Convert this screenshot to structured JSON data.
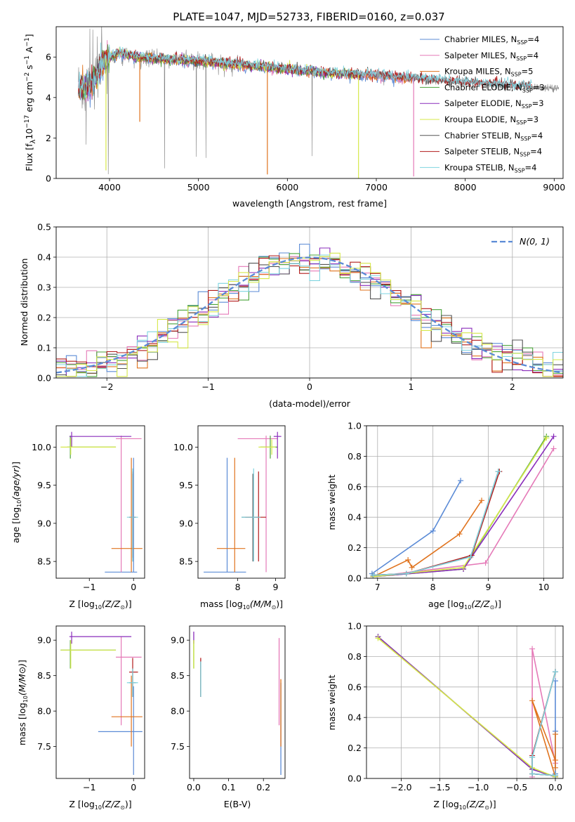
{
  "figure": {
    "title": "PLATE=1047, MJD=52733, FIBERID=0160, z=0.037"
  },
  "colors": {
    "Chabrier MILES": "#5b8bd6",
    "Salpeter MILES": "#e57ab8",
    "Kroupa MILES": "#e0731e",
    "Chabrier ELODIE": "#4aa33b",
    "Salpeter ELODIE": "#8a2dbb",
    "Kroupa ELODIE": "#d6e84a",
    "Chabrier STELIB": "#555555",
    "Salpeter STELIB": "#b31b1b",
    "Kroupa STELIB": "#7fd4e0",
    "data": "#808080",
    "gauss": "#5b8bd6"
  },
  "chart_data": [
    {
      "id": "spectrum",
      "type": "line",
      "xlabel": "wavelength [Angstrom, rest frame]",
      "ylabel": "Flux [f",
      "xlim": [
        3400,
        9100
      ],
      "ylim": [
        0,
        7.5
      ],
      "xticks": [
        4000,
        5000,
        6000,
        7000,
        8000,
        9000
      ],
      "yticks": [
        0,
        2,
        4,
        6
      ],
      "legend_position": "top-right",
      "legend": [
        {
          "model": "Chabrier MILES",
          "label": "Chabrier MILES, N",
          "n": 4
        },
        {
          "model": "Salpeter MILES",
          "label": "Salpeter MILES, N",
          "n": 4
        },
        {
          "model": "Kroupa MILES",
          "label": "Kroupa MILES, N",
          "n": 5
        },
        {
          "model": "Chabrier ELODIE",
          "label": "Chabrier ELODIE, N",
          "n": 3
        },
        {
          "model": "Salpeter ELODIE",
          "label": "Salpeter ELODIE, N",
          "n": 3
        },
        {
          "model": "Kroupa ELODIE",
          "label": "Kroupa ELODIE, N",
          "n": 3
        },
        {
          "model": "Chabrier STELIB",
          "label": "Chabrier STELIB, N",
          "n": 4
        },
        {
          "model": "Salpeter STELIB",
          "label": "Salpeter STELIB, N",
          "n": 4
        },
        {
          "model": "Kroupa STELIB",
          "label": "Kroupa STELIB, N",
          "n": 4
        }
      ],
      "continuum": [
        [
          3650,
          4.3
        ],
        [
          3800,
          4.6
        ],
        [
          3950,
          5.9
        ],
        [
          4100,
          6.2
        ],
        [
          4300,
          6.0
        ],
        [
          4600,
          5.9
        ],
        [
          5000,
          5.8
        ],
        [
          5500,
          5.6
        ],
        [
          6000,
          5.4
        ],
        [
          6500,
          5.2
        ],
        [
          7000,
          5.1
        ],
        [
          7400,
          4.95
        ],
        [
          7800,
          4.8
        ],
        [
          8300,
          4.65
        ],
        [
          8800,
          4.5
        ],
        [
          9050,
          4.45
        ]
      ],
      "model_cutoffs": {
        "MILES": 7420,
        "ELODIE": 6800,
        "STELIB": 8750
      }
    },
    {
      "id": "residuals",
      "type": "line",
      "xlabel": "(data-model)/error",
      "ylabel": "Normed distribution",
      "xlim": [
        -2.5,
        2.5
      ],
      "ylim": [
        0,
        0.5
      ],
      "xticks": [
        -2,
        -1,
        0,
        1,
        2
      ],
      "yticks": [
        0.0,
        0.1,
        0.2,
        0.3,
        0.4,
        0.5
      ],
      "legend_label": "N(0, 1)",
      "legend_position": "top-right",
      "bin_width": 0.1
    },
    {
      "id": "age-vs-Z",
      "type": "scatter",
      "xlabel": "Z [log",
      "ylabel": "age  [log",
      "xlim": [
        -1.75,
        0.25
      ],
      "ylim": [
        8.28,
        10.28
      ],
      "xticks": [
        -1,
        0
      ],
      "yticks": [
        8.5,
        9.0,
        9.5,
        10.0
      ]
    },
    {
      "id": "age-vs-mass",
      "type": "scatter",
      "xlabel": "mass [log",
      "ylabel": "",
      "xlim": [
        6.95,
        9.25
      ],
      "ylim": [
        8.28,
        10.28
      ],
      "xticks": [
        8,
        9
      ],
      "yticks": [
        8.5,
        9.0,
        9.5,
        10.0
      ]
    },
    {
      "id": "massweight-vs-age",
      "type": "line",
      "xlabel": "age  [log",
      "ylabel": "mass weight",
      "xlim": [
        6.8,
        10.35
      ],
      "ylim": [
        0,
        1.0
      ],
      "xticks": [
        7,
        8,
        9,
        10
      ],
      "yticks": [
        0.0,
        0.2,
        0.4,
        0.6,
        0.8,
        1.0
      ]
    },
    {
      "id": "mass-vs-Z",
      "type": "scatter",
      "xlabel": "Z [log",
      "ylabel": "mass [log",
      "xlim": [
        -1.75,
        0.25
      ],
      "ylim": [
        7.05,
        9.2
      ],
      "xticks": [
        -1,
        0
      ],
      "yticks": [
        7.5,
        8.0,
        8.5,
        9.0
      ]
    },
    {
      "id": "mass-vs-ebv",
      "type": "scatter",
      "xlabel": "E(B-V)",
      "ylabel": "",
      "xlim": [
        -0.012,
        0.262
      ],
      "ylim": [
        7.05,
        9.2
      ],
      "xticks": [
        0.0,
        0.1,
        0.2
      ],
      "yticks": [
        7.5,
        8.0,
        8.5,
        9.0
      ]
    },
    {
      "id": "massweight-vs-Z",
      "type": "line",
      "xlabel": "Z [log",
      "ylabel": "mass weight",
      "xlim": [
        -2.45,
        0.1
      ],
      "ylim": [
        0,
        1.0
      ],
      "xticks": [
        -2.0,
        -1.5,
        -1.0,
        -0.5,
        0.0
      ],
      "yticks": [
        0.0,
        0.2,
        0.4,
        0.6,
        0.8,
        1.0
      ]
    }
  ],
  "models": [
    {
      "name": "Chabrier MILES",
      "age": [
        6.9,
        8.0,
        8.5
      ],
      "mw": [
        0.03,
        0.31,
        0.64
      ],
      "Z": [
        0.0,
        0.0,
        0.0
      ],
      "ageZ": {
        "Z": 0.0,
        "Zlo": -0.65,
        "Zhi": 0.08,
        "age": 8.36,
        "elo": 8.36,
        "ehi": 9.86
      },
      "agemass": {
        "m": 7.72,
        "mlo": 7.1,
        "mhi": 8.22,
        "age": 8.36,
        "elo": 8.36,
        "ehi": 9.86
      },
      "massZ": {
        "Z": 0.0,
        "Zlo": -0.8,
        "Zhi": 0.2,
        "m": 7.71,
        "elo": 7.1,
        "ehi": 8.35
      },
      "ebv": {
        "e": 0.25,
        "lo": 7.1,
        "hi": 8.4
      },
      "zpath": [
        [
          0.0,
          0.03
        ],
        [
          0.0,
          0.31
        ],
        [
          0.0,
          0.64
        ]
      ]
    },
    {
      "name": "Salpeter MILES",
      "age": [
        6.92,
        8.95,
        10.18
      ],
      "mw": [
        0.01,
        0.1,
        0.85
      ],
      "Z": [
        -0.3,
        -0.3,
        0.0
      ],
      "ageZ": {
        "Z": -0.28,
        "Zlo": -0.4,
        "Zhi": 0.18,
        "age": 10.11,
        "elo": 8.36,
        "ehi": 10.15
      },
      "agemass": {
        "m": 8.75,
        "mlo": 8.0,
        "mhi": 9.05,
        "age": 10.11,
        "elo": 8.36,
        "ehi": 10.15
      },
      "massZ": {
        "Z": -0.28,
        "Zlo": -0.4,
        "Zhi": 0.18,
        "m": 8.76,
        "elo": 7.8,
        "ehi": 9.05
      },
      "ebv": {
        "e": 0.245,
        "lo": 7.8,
        "hi": 9.03
      },
      "zpath": [
        [
          -0.3,
          0.01
        ],
        [
          -0.3,
          0.85
        ],
        [
          0.0,
          0.1
        ]
      ]
    },
    {
      "name": "Kroupa MILES",
      "age": [
        6.92,
        7.55,
        7.62,
        8.48,
        8.88
      ],
      "mw": [
        0.01,
        0.12,
        0.07,
        0.29,
        0.51
      ],
      "Z": [
        0.0,
        -0.3,
        0.0,
        0.0,
        0.0
      ],
      "ageZ": {
        "Z": -0.05,
        "Zlo": -0.5,
        "Zhi": 0.2,
        "age": 8.67,
        "elo": 8.36,
        "ehi": 9.86
      },
      "agemass": {
        "m": 7.92,
        "mlo": 7.45,
        "mhi": 8.2,
        "age": 8.67,
        "elo": 8.36,
        "ehi": 9.86
      },
      "massZ": {
        "Z": -0.05,
        "Zlo": -0.5,
        "Zhi": 0.2,
        "m": 7.92,
        "elo": 7.5,
        "ehi": 8.5
      },
      "ebv": {
        "e": 0.25,
        "lo": 7.5,
        "hi": 8.45
      },
      "zpath": [
        [
          0.0,
          0.01
        ],
        [
          -0.3,
          0.51
        ],
        [
          0.0,
          0.12
        ],
        [
          0.0,
          0.29
        ],
        [
          0.0,
          0.07
        ]
      ]
    },
    {
      "name": "Chabrier ELODIE",
      "age": [
        6.92,
        8.55,
        10.05
      ],
      "mw": [
        0.01,
        0.06,
        0.93
      ],
      "Z": [
        -2.3,
        -0.3,
        0.0
      ],
      "ageZ": {
        "Z": -1.43,
        "Zlo": -1.5,
        "Zhi": -0.4,
        "age": 10.0,
        "elo": 9.85,
        "ehi": 10.15
      },
      "agemass": {
        "m": 8.86,
        "mlo": 8.6,
        "mhi": 9.05,
        "age": 10.0,
        "elo": 9.85,
        "ehi": 10.15
      },
      "massZ": {
        "Z": -1.43,
        "Zlo": -1.65,
        "Zhi": -0.4,
        "m": 8.86,
        "elo": 8.6,
        "ehi": 9.0
      },
      "ebv": {
        "e": 0.0,
        "lo": 8.6,
        "hi": 9.0
      },
      "zpath": [
        [
          -2.3,
          0.93
        ],
        [
          -0.3,
          0.06
        ],
        [
          0.0,
          0.01
        ]
      ]
    },
    {
      "name": "Salpeter ELODIE",
      "age": [
        6.92,
        8.55,
        10.18
      ],
      "mw": [
        0.01,
        0.06,
        0.93
      ],
      "Z": [
        -2.3,
        -0.3,
        0.0
      ],
      "ageZ": {
        "Z": -1.4,
        "Zlo": -1.45,
        "Zhi": -0.05,
        "age": 10.14,
        "elo": 10.0,
        "ehi": 10.2
      },
      "agemass": {
        "m": 9.05,
        "mlo": 8.95,
        "mhi": 9.15,
        "age": 10.14,
        "elo": 9.85,
        "ehi": 10.2
      },
      "massZ": {
        "Z": -1.4,
        "Zlo": -1.45,
        "Zhi": -0.05,
        "m": 9.05,
        "elo": 8.95,
        "ehi": 9.12
      },
      "ebv": {
        "e": 0.0,
        "lo": 8.95,
        "hi": 9.12
      },
      "zpath": [
        [
          -2.3,
          0.93
        ],
        [
          -0.3,
          0.06
        ],
        [
          0.0,
          0.01
        ]
      ]
    },
    {
      "name": "Kroupa ELODIE",
      "age": [
        6.92,
        8.55,
        10.05
      ],
      "mw": [
        0.01,
        0.07,
        0.92
      ],
      "Z": [
        -2.3,
        -0.3,
        0.0
      ],
      "ageZ": {
        "Z": -1.42,
        "Zlo": -1.65,
        "Zhi": -0.4,
        "age": 10.0,
        "elo": 9.9,
        "ehi": 10.12
      },
      "agemass": {
        "m": 8.9,
        "mlo": 8.55,
        "mhi": 9.0,
        "age": 10.0,
        "elo": 9.9,
        "ehi": 10.1
      },
      "massZ": {
        "Z": -1.42,
        "Zlo": -1.65,
        "Zhi": -0.4,
        "m": 8.86,
        "elo": 8.6,
        "ehi": 9.0
      },
      "ebv": {
        "e": 0.0,
        "lo": 8.6,
        "hi": 9.0
      },
      "zpath": [
        [
          -2.3,
          0.92
        ],
        [
          -0.3,
          0.07
        ],
        [
          0.0,
          0.01
        ]
      ]
    },
    {
      "name": "Chabrier STELIB",
      "age": [
        6.92,
        7.52,
        8.68,
        9.18
      ],
      "mw": [
        0.02,
        0.03,
        0.14,
        0.7
      ],
      "Z": [
        0.0,
        -0.3,
        -0.3,
        0.0
      ],
      "ageZ": {
        "Z": -0.02,
        "Zlo": -0.1,
        "Zhi": 0.05,
        "age": 9.08,
        "elo": 8.5,
        "ehi": 9.65
      },
      "agemass": {
        "m": 8.4,
        "mlo": 8.1,
        "mhi": 8.6,
        "age": 9.08,
        "elo": 8.5,
        "ehi": 9.65
      },
      "massZ": {
        "Z": -0.02,
        "Zlo": -0.1,
        "Zhi": 0.05,
        "m": 8.4,
        "elo": 8.2,
        "ehi": 8.6
      },
      "ebv": {
        "e": 0.02,
        "lo": 8.2,
        "hi": 8.7
      },
      "zpath": [
        [
          0.0,
          0.02
        ],
        [
          -0.3,
          0.03
        ],
        [
          -0.3,
          0.14
        ],
        [
          0.0,
          0.7
        ]
      ]
    },
    {
      "name": "Salpeter STELIB",
      "age": [
        6.92,
        7.52,
        8.7,
        9.2
      ],
      "mw": [
        0.02,
        0.03,
        0.15,
        0.7
      ],
      "Z": [
        0.0,
        -0.3,
        -0.3,
        0.0
      ],
      "ageZ": {
        "Z": -0.02,
        "Zlo": -0.1,
        "Zhi": 0.05,
        "age": 9.08,
        "elo": 8.55,
        "ehi": 9.68
      },
      "agemass": {
        "m": 8.55,
        "mlo": 8.2,
        "mhi": 8.75,
        "age": 9.08,
        "elo": 8.5,
        "ehi": 9.68
      },
      "massZ": {
        "Z": -0.02,
        "Zlo": -0.1,
        "Zhi": 0.1,
        "m": 8.55,
        "elo": 8.2,
        "ehi": 8.75
      },
      "ebv": {
        "e": 0.02,
        "lo": 8.2,
        "hi": 8.75
      },
      "zpath": [
        [
          0.0,
          0.02
        ],
        [
          -0.3,
          0.03
        ],
        [
          -0.3,
          0.15
        ],
        [
          0.0,
          0.7
        ]
      ]
    },
    {
      "name": "Kroupa STELIB",
      "age": [
        6.92,
        7.52,
        8.68,
        9.18
      ],
      "mw": [
        0.02,
        0.03,
        0.14,
        0.7
      ],
      "Z": [
        0.0,
        -0.3,
        -0.3,
        0.0
      ],
      "ageZ": {
        "Z": -0.02,
        "Zlo": -0.15,
        "Zhi": 0.1,
        "age": 9.08,
        "elo": 8.5,
        "ehi": 9.72
      },
      "agemass": {
        "m": 8.42,
        "mlo": 8.1,
        "mhi": 8.6,
        "age": 9.08,
        "elo": 8.5,
        "ehi": 9.72
      },
      "massZ": {
        "Z": -0.02,
        "Zlo": -0.15,
        "Zhi": 0.1,
        "m": 8.4,
        "elo": 8.2,
        "ehi": 8.6
      },
      "ebv": {
        "e": 0.02,
        "lo": 8.2,
        "hi": 8.7
      },
      "zpath": [
        [
          0.0,
          0.02
        ],
        [
          -0.3,
          0.03
        ],
        [
          -0.3,
          0.14
        ],
        [
          0.0,
          0.7
        ]
      ]
    }
  ]
}
